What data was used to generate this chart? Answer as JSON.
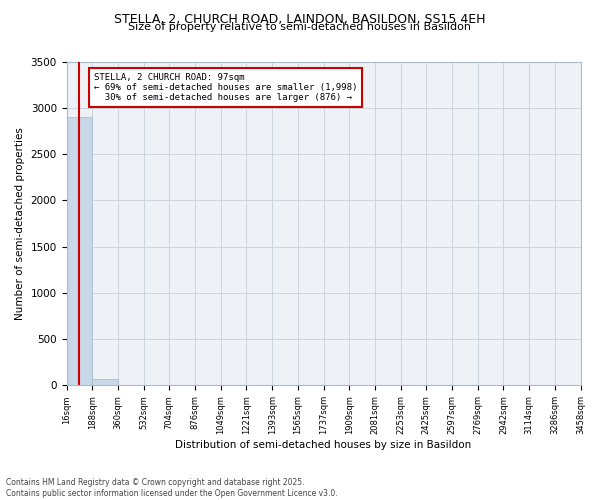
{
  "title1": "STELLA, 2, CHURCH ROAD, LAINDON, BASILDON, SS15 4EH",
  "title2": "Size of property relative to semi-detached houses in Basildon",
  "xlabel": "Distribution of semi-detached houses by size in Basildon",
  "ylabel": "Number of semi-detached properties",
  "bin_labels": [
    "16sqm",
    "188sqm",
    "360sqm",
    "532sqm",
    "704sqm",
    "876sqm",
    "1049sqm",
    "1221sqm",
    "1393sqm",
    "1565sqm",
    "1737sqm",
    "1909sqm",
    "2081sqm",
    "2253sqm",
    "2425sqm",
    "2597sqm",
    "2769sqm",
    "2942sqm",
    "3114sqm",
    "3286sqm",
    "3458sqm"
  ],
  "bar_heights": [
    2900,
    65,
    5,
    2,
    1,
    1,
    1,
    0,
    0,
    0,
    0,
    0,
    0,
    0,
    0,
    0,
    0,
    0,
    0,
    0,
    0
  ],
  "bar_color": "#c8d8e8",
  "bar_edge_color": "#a0b8cc",
  "property_size": 97,
  "property_label": "STELLA, 2 CHURCH ROAD: 97sqm",
  "smaller_pct": 69,
  "smaller_n": 1998,
  "larger_pct": 30,
  "larger_n": 876,
  "vline_color": "#cc0000",
  "bg_color": "#eef2f6",
  "grid_color": "#ccd4dc",
  "ylim": [
    0,
    3500
  ],
  "yticks": [
    0,
    500,
    1000,
    1500,
    2000,
    2500,
    3000,
    3500
  ],
  "bin_edges": [
    16,
    188,
    360,
    532,
    704,
    876,
    1049,
    1221,
    1393,
    1565,
    1737,
    1909,
    2081,
    2253,
    2425,
    2597,
    2769,
    2942,
    3114,
    3286,
    3458
  ],
  "footer": "Contains HM Land Registry data © Crown copyright and database right 2025.\nContains public sector information licensed under the Open Government Licence v3.0."
}
